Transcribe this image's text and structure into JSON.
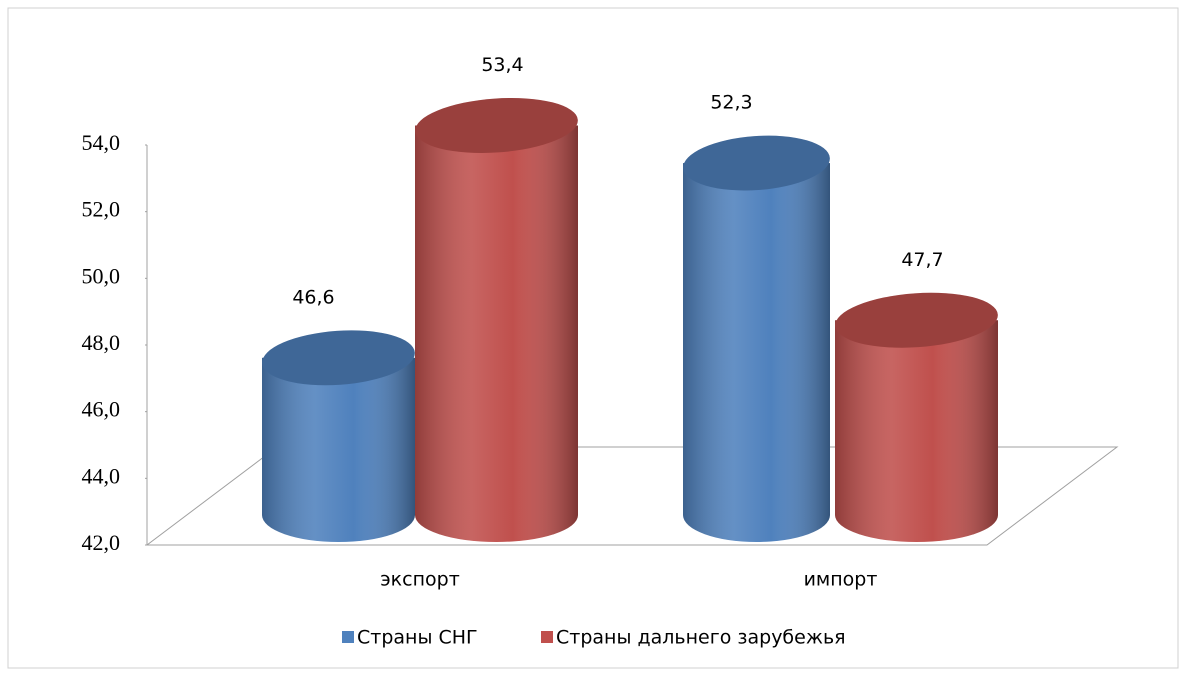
{
  "chart_data": {
    "type": "bar3d_cylinder",
    "categories": [
      "экспорт",
      "импорт"
    ],
    "series": [
      {
        "name": "Страны СНГ",
        "color": "#4f81bd",
        "values": [
          46.6,
          52.3
        ],
        "value_labels": [
          "46,6",
          "52,3"
        ]
      },
      {
        "name": "Страны дальнего зарубежья",
        "color": "#c0504d",
        "values": [
          53.4,
          47.7
        ],
        "value_labels": [
          "53,4",
          "47,7"
        ]
      }
    ],
    "ylim": [
      42,
      54
    ],
    "yticks": [
      {
        "value": 42,
        "label": "42,0"
      },
      {
        "value": 44,
        "label": "44,0"
      },
      {
        "value": 46,
        "label": "46,0"
      },
      {
        "value": 48,
        "label": "48,0"
      },
      {
        "value": 50,
        "label": "50,0"
      },
      {
        "value": 52,
        "label": "52,0"
      },
      {
        "value": 54,
        "label": "54,0"
      }
    ],
    "grid": false,
    "legend": "bottom"
  }
}
